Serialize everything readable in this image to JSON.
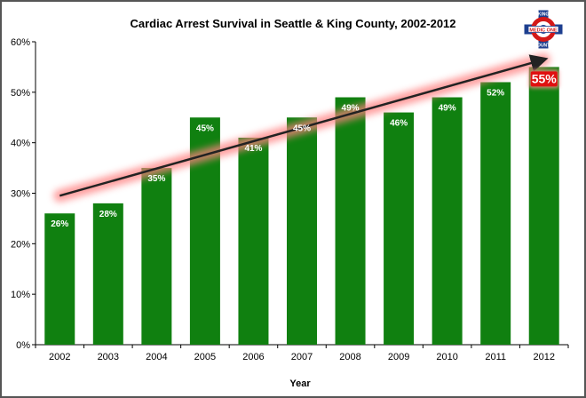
{
  "chart_data": {
    "type": "bar",
    "title": "Cardiac Arrest Survival in Seattle & King County, 2002-2012",
    "xlabel": "Year",
    "ylabel": "",
    "categories": [
      "2002",
      "2003",
      "2004",
      "2005",
      "2006",
      "2007",
      "2008",
      "2009",
      "2010",
      "2011",
      "2012"
    ],
    "values": [
      26,
      28,
      35,
      45,
      41,
      45,
      49,
      46,
      49,
      52,
      55
    ],
    "data_labels": [
      "26%",
      "28%",
      "35%",
      "45%",
      "41%",
      "45%",
      "49%",
      "46%",
      "49%",
      "52%",
      "55%"
    ],
    "ylim": [
      0,
      60
    ],
    "yticks": [
      0,
      10,
      20,
      30,
      40,
      50,
      60
    ],
    "ytick_labels": [
      "0%",
      "10%",
      "20%",
      "30%",
      "40%",
      "50%",
      "60%"
    ],
    "grid": false,
    "legend": "none",
    "bar_color": "#108010",
    "highlight_label_color": "#e01010",
    "trend_line": {
      "from": [
        2002,
        29.5
      ],
      "to": [
        2012,
        56.5
      ],
      "color": "#222222",
      "glow_color": "#ff8080"
    }
  },
  "logo": {
    "name": "king-county-medic-one-logo",
    "top_text": "KING",
    "middle_text": "MEDIC ONE",
    "bottom_text": "COUNTY"
  }
}
